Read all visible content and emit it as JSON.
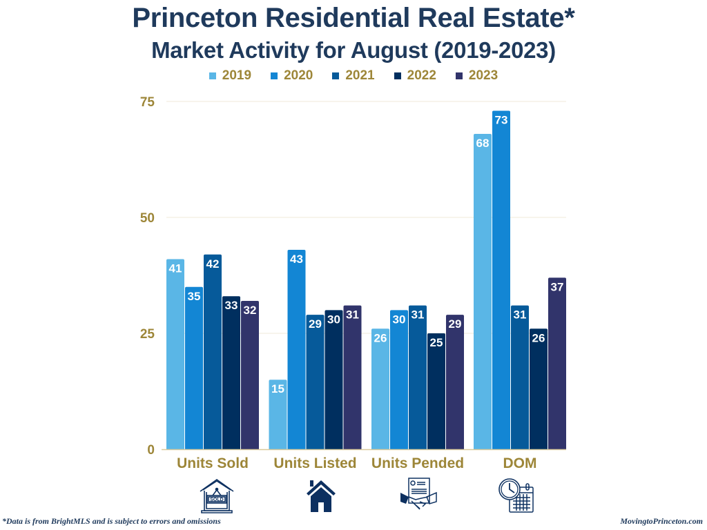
{
  "chart_data": {
    "type": "bar",
    "title": "Princeton Residential Real Estate*",
    "subtitle": "Market Activity for August (2019-2023)",
    "categories": [
      "Units Sold",
      "Units Listed",
      "Units Pended",
      "DOM"
    ],
    "series": [
      {
        "name": "2019",
        "color": "#5ab6e6",
        "values": [
          41,
          15,
          26,
          68
        ]
      },
      {
        "name": "2020",
        "color": "#1386d4",
        "values": [
          35,
          43,
          30,
          73
        ]
      },
      {
        "name": "2021",
        "color": "#065a9a",
        "values": [
          42,
          29,
          31,
          31
        ]
      },
      {
        "name": "2022",
        "color": "#002f5f",
        "values": [
          33,
          30,
          25,
          26
        ]
      },
      {
        "name": "2023",
        "color": "#31346b",
        "values": [
          32,
          31,
          29,
          37
        ]
      }
    ],
    "yticks": [
      0,
      25,
      50,
      75
    ],
    "ylim": [
      0,
      75
    ],
    "xlabel": "",
    "ylabel": "",
    "grid": true,
    "legend_position": "top-center",
    "data_labels": true
  },
  "icons": [
    "sold-sign-house-icon",
    "house-icon",
    "contract-handshake-icon",
    "clock-calendar-icon"
  ],
  "footer": {
    "note": "*Data is from BrightMLS and is subject to errors and omissions",
    "site": "MovingtoPrinceton.com"
  },
  "colors": {
    "title": "#1f3a5c",
    "axis_text": "#9d8638",
    "grid": "#efeada",
    "icon": "#0d3060"
  }
}
